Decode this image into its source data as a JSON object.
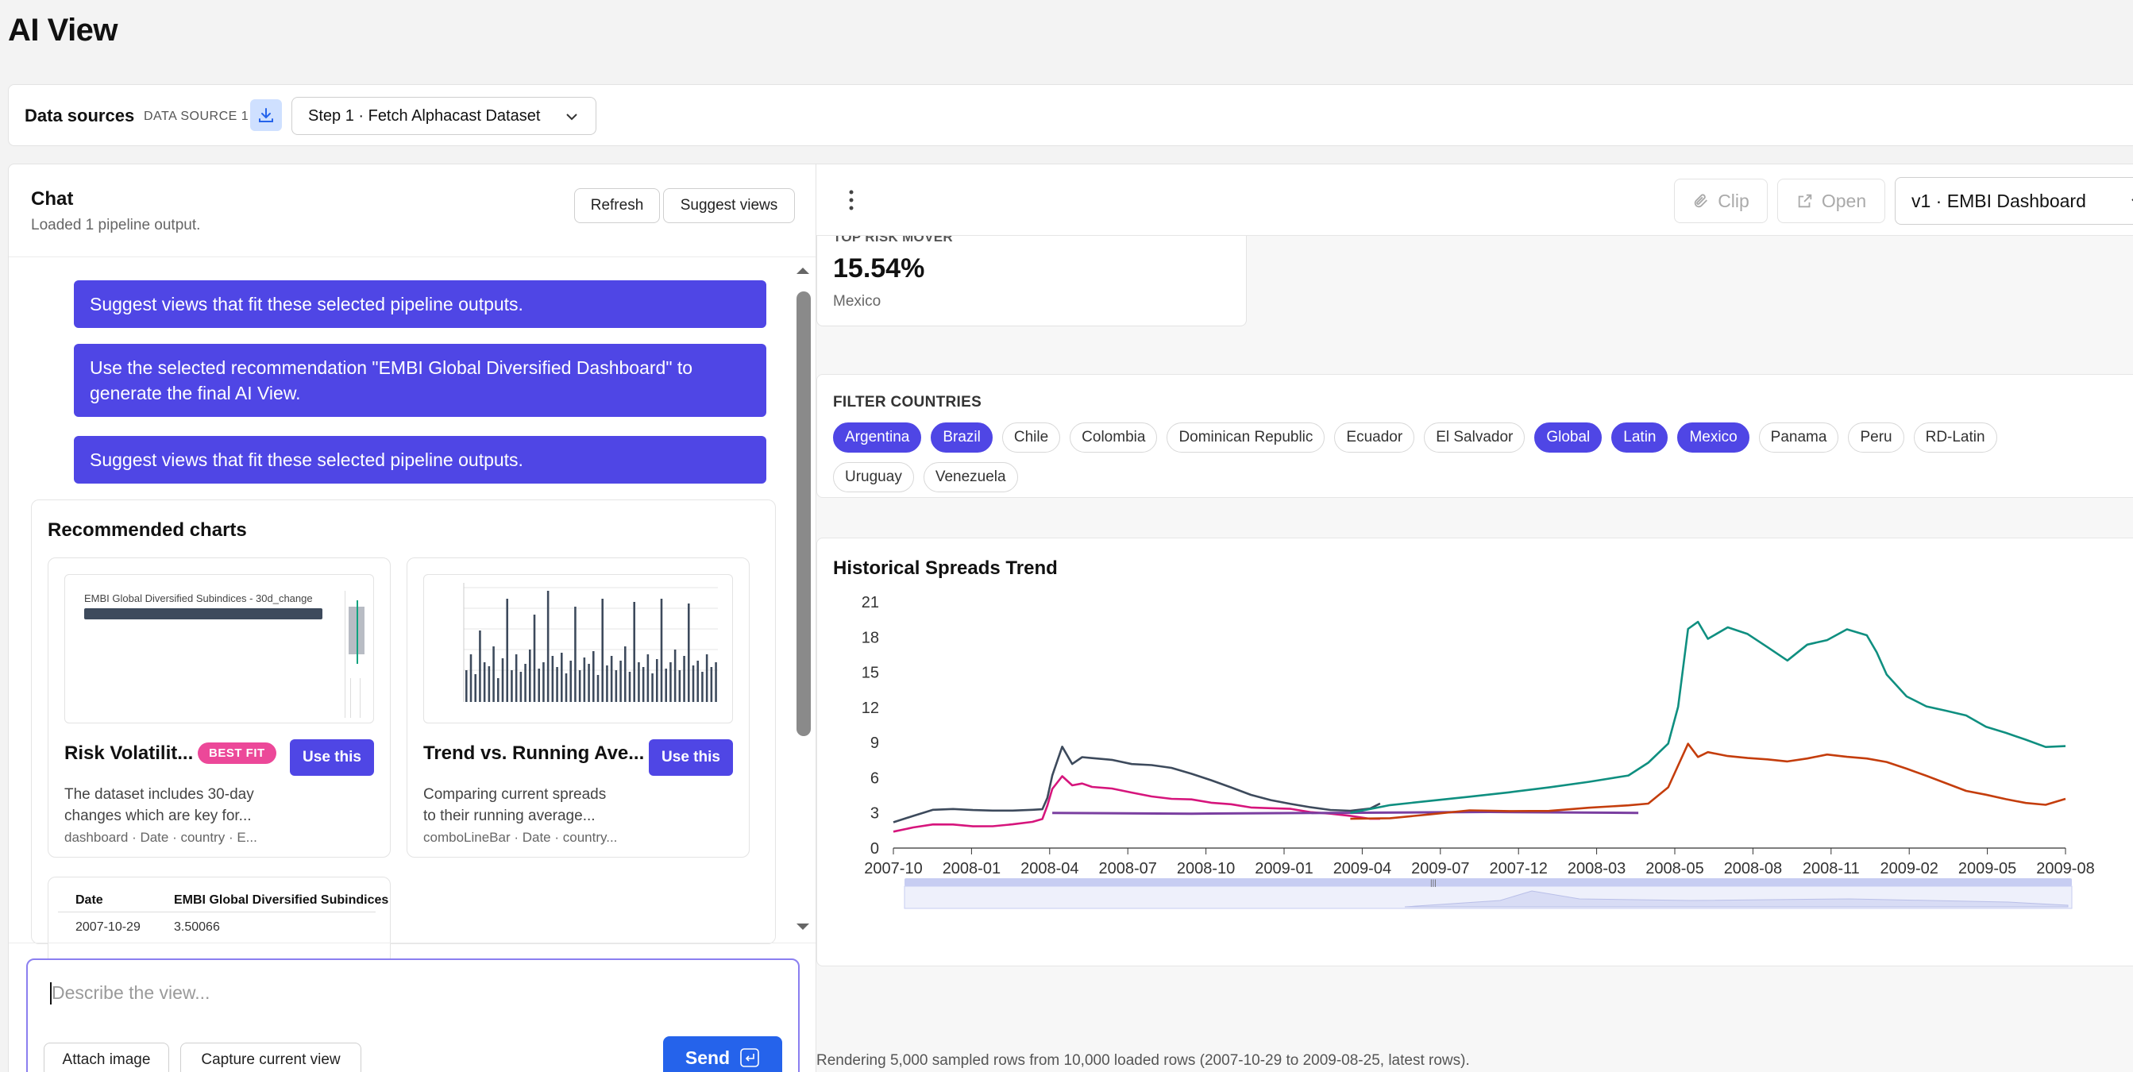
{
  "page": {
    "title": "AI View"
  },
  "data_sources": {
    "label": "Data sources",
    "source_tag": "DATA SOURCE 1",
    "download_icon": "download-icon",
    "step_select": {
      "value": "Step 1 · Fetch Alphacast Dataset"
    }
  },
  "chat": {
    "title": "Chat",
    "subtitle": "Loaded 1 pipeline output.",
    "refresh_label": "Refresh",
    "suggest_label": "Suggest views",
    "messages": [
      "Suggest views that fit these selected pipeline outputs.",
      "Use the selected recommendation \"EMBI Global Diversified Dashboard\" to generate the final AI View.",
      "Suggest views that fit these selected pipeline outputs."
    ],
    "recommended": {
      "title": "Recommended charts",
      "cards": [
        {
          "thumb_caption": "EMBI Global Diversified Subindices - 30d_change",
          "title": "Risk Volatilit...",
          "badge": "BEST FIT",
          "button": "Use this",
          "desc_line1": "The dataset includes 30-day",
          "desc_line2": "changes which are key for...",
          "meta": "dashboard · Date · country · E..."
        },
        {
          "title": "Trend vs. Running Ave...",
          "button": "Use this",
          "desc_line1": "Comparing current spreads",
          "desc_line2": "to their running average...",
          "meta": "comboLineBar · Date · country..."
        }
      ],
      "table_preview": {
        "headers": [
          "Date",
          "EMBI Global Diversified Subindices"
        ],
        "row": [
          "2007-10-29",
          "3.50066"
        ]
      }
    },
    "input": {
      "placeholder": "Describe the view...",
      "attach_label": "Attach image",
      "capture_label": "Capture current view",
      "send_label": "Send"
    }
  },
  "view": {
    "clip_label": "Clip",
    "open_label": "Open",
    "version_select": "v1 · EMBI Dashboard",
    "kpi": {
      "label": "TOP RISK MOVER",
      "value": "15.54%",
      "sub": "Mexico"
    },
    "filter": {
      "label": "FILTER COUNTRIES",
      "row1": [
        {
          "name": "Argentina",
          "on": true
        },
        {
          "name": "Brazil",
          "on": true
        },
        {
          "name": "Chile",
          "on": false
        },
        {
          "name": "Colombia",
          "on": false
        },
        {
          "name": "Dominican Republic",
          "on": false
        },
        {
          "name": "Ecuador",
          "on": false
        },
        {
          "name": "El Salvador",
          "on": false
        },
        {
          "name": "Global",
          "on": true
        },
        {
          "name": "Latin",
          "on": true
        },
        {
          "name": "Mexico",
          "on": true
        },
        {
          "name": "Panama",
          "on": false
        },
        {
          "name": "Peru",
          "on": false
        },
        {
          "name": "RD-Latin",
          "on": false
        }
      ],
      "row2": [
        {
          "name": "Uruguay",
          "on": false
        },
        {
          "name": "Venezuela",
          "on": false
        }
      ]
    },
    "footnote": "Rendering 5,000 sampled rows from 10,000 loaded rows (2007-10-29 to 2009-08-25, latest rows)."
  },
  "chart_data": {
    "type": "line",
    "title": "Historical Spreads Trend",
    "x_ticks": [
      "2007-10",
      "2008-01",
      "2008-04",
      "2008-07",
      "2008-10",
      "2009-01",
      "2009-04",
      "2009-07",
      "2007-12",
      "2008-03",
      "2008-05",
      "2008-08",
      "2008-11",
      "2009-02",
      "2009-05",
      "2009-08"
    ],
    "y_ticks": [
      0,
      3,
      6,
      9,
      12,
      15,
      18,
      21
    ],
    "ylim": [
      0,
      21
    ],
    "grid": false,
    "colors": [
      "#3d4a5c",
      "#d6157c",
      "#7a3fa0",
      "#0f8f80",
      "#c43d0c"
    ],
    "series": [
      {
        "x": [
          0,
          2,
          4,
          6,
          8,
          10,
          12,
          14,
          15,
          15.5,
          16,
          17,
          18,
          19,
          20,
          22,
          24,
          26,
          28,
          30,
          32,
          34,
          36,
          38,
          40,
          42,
          44,
          46,
          48,
          49
        ],
        "values": [
          2.2,
          2.6,
          3.0,
          3.0,
          2.9,
          2.9,
          3.0,
          3.2,
          3.4,
          4.5,
          6.5,
          9.0,
          7.5,
          8.0,
          7.8,
          7.5,
          7.0,
          6.8,
          6.5,
          6.0,
          5.5,
          5.0,
          4.5,
          4.2,
          4.0,
          3.8,
          3.6,
          3.5,
          3.6,
          3.8
        ]
      },
      {
        "x": [
          0,
          2,
          4,
          6,
          8,
          10,
          12,
          14,
          15,
          15.5,
          16,
          17,
          18,
          19,
          20,
          22,
          24,
          26,
          28,
          30,
          32,
          34,
          36,
          38,
          40,
          42,
          44,
          46,
          48,
          49
        ],
        "values": [
          1.4,
          1.8,
          2.2,
          2.3,
          2.2,
          2.2,
          2.3,
          2.4,
          2.5,
          3.5,
          4.8,
          5.8,
          5.0,
          5.2,
          5.0,
          5.0,
          4.8,
          4.6,
          4.5,
          4.5,
          4.2,
          4.0,
          3.6,
          3.4,
          3.2,
          2.8,
          2.6,
          2.4,
          2.2,
          2.5
        ]
      },
      {
        "x": [
          16,
          30,
          60,
          75
        ],
        "values": [
          3.0,
          3.0,
          3.0,
          3.0
        ]
      },
      {
        "x": [
          46,
          50,
          54,
          58,
          62,
          66,
          70,
          74,
          76,
          78,
          79,
          80,
          81,
          82,
          84,
          86,
          88,
          90,
          92,
          94,
          96,
          98,
          99,
          100,
          102,
          104,
          106,
          108,
          110,
          112,
          114,
          116,
          118
        ],
        "values": [
          3.0,
          3.5,
          4.0,
          4.5,
          5.0,
          5.5,
          6.0,
          6.5,
          7.5,
          9.0,
          12.0,
          18.5,
          19.0,
          17.5,
          18.5,
          18.0,
          17.0,
          16.0,
          17.5,
          18.0,
          19.0,
          18.5,
          17.0,
          15.0,
          13.0,
          12.0,
          11.5,
          11.0,
          10.0,
          9.5,
          9.0,
          8.5,
          8.7
        ]
      },
      {
        "x": [
          46,
          50,
          54,
          58,
          62,
          66,
          70,
          74,
          76,
          78,
          79,
          80,
          81,
          82,
          84,
          86,
          88,
          90,
          92,
          94,
          96,
          98,
          100,
          102,
          104,
          106,
          108,
          110,
          112,
          114,
          116,
          118
        ],
        "values": [
          2.5,
          2.8,
          3.0,
          3.2,
          3.0,
          2.9,
          3.1,
          3.3,
          3.5,
          5.0,
          7.0,
          9.0,
          8.0,
          8.5,
          8.2,
          8.0,
          7.8,
          7.5,
          7.6,
          7.8,
          7.5,
          7.3,
          7.0,
          6.5,
          6.0,
          5.5,
          5.0,
          4.8,
          4.5,
          4.2,
          4.0,
          4.2
        ]
      }
    ]
  }
}
